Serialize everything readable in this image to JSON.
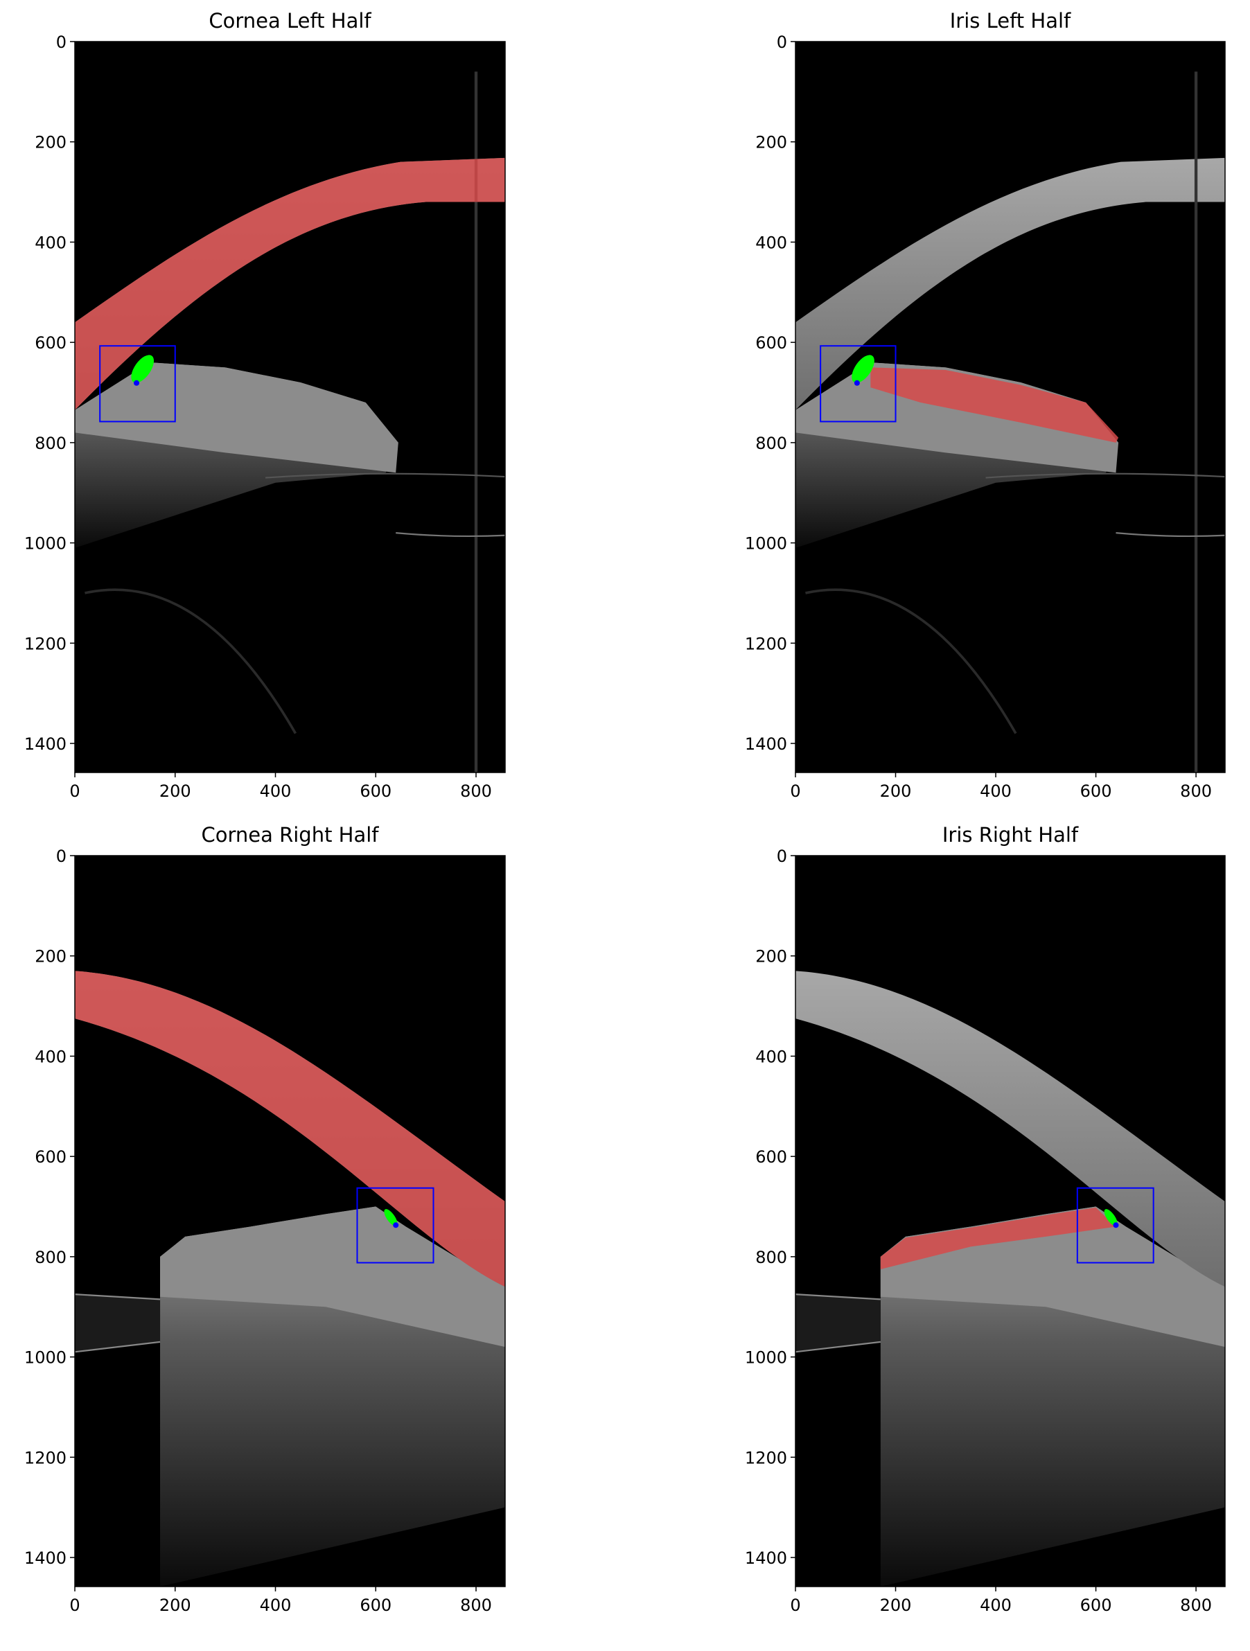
{
  "chart_data": [
    {
      "type": "image",
      "title": "Cornea Left Half",
      "xlim": [
        0,
        858
      ],
      "ylim": [
        1458,
        0
      ],
      "xticks": [
        0,
        200,
        400,
        600,
        800
      ],
      "yticks": [
        0,
        200,
        400,
        600,
        800,
        1000,
        1200,
        1400
      ],
      "roi": {
        "x": [
          50,
          200
        ],
        "y": [
          607,
          758
        ]
      },
      "point": {
        "x": 123,
        "y": 681
      },
      "roi_color": "#0000ff",
      "point_color": "#0000ff"
    },
    {
      "type": "image",
      "title": "Iris Left Half",
      "xlim": [
        0,
        858
      ],
      "ylim": [
        1458,
        0
      ],
      "xticks": [
        0,
        200,
        400,
        600,
        800
      ],
      "yticks": [
        0,
        200,
        400,
        600,
        800,
        1000,
        1200,
        1400
      ],
      "roi": {
        "x": [
          50,
          200
        ],
        "y": [
          607,
          758
        ]
      },
      "point": {
        "x": 123,
        "y": 681
      },
      "roi_color": "#0000ff",
      "point_color": "#0000ff"
    },
    {
      "type": "image",
      "title": "Cornea Right Half",
      "xlim": [
        0,
        858
      ],
      "ylim": [
        1458,
        0
      ],
      "xticks": [
        0,
        200,
        400,
        600,
        800
      ],
      "yticks": [
        0,
        200,
        400,
        600,
        800,
        1000,
        1200,
        1400
      ],
      "roi": {
        "x": [
          563,
          715
        ],
        "y": [
          663,
          812
        ]
      },
      "point": {
        "x": 640,
        "y": 737
      },
      "roi_color": "#0000ff",
      "point_color": "#0000ff"
    },
    {
      "type": "image",
      "title": "Iris Right Half",
      "xlim": [
        0,
        858
      ],
      "ylim": [
        1458,
        0
      ],
      "xticks": [
        0,
        200,
        400,
        600,
        800
      ],
      "yticks": [
        0,
        200,
        400,
        600,
        800,
        1000,
        1200,
        1400
      ],
      "roi": {
        "x": [
          563,
          715
        ],
        "y": [
          663,
          812
        ]
      },
      "point": {
        "x": 640,
        "y": 737
      },
      "roi_color": "#0000ff",
      "point_color": "#0000ff"
    }
  ]
}
